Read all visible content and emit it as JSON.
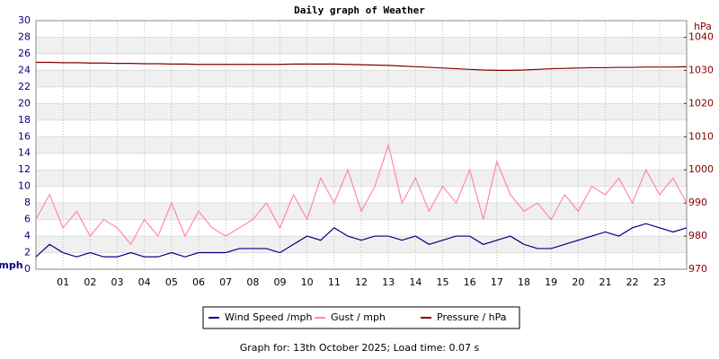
{
  "chart_data": {
    "type": "line",
    "title": "Daily graph of Weather",
    "y_label": "mph",
    "y2_label": "hPa",
    "footer": "Graph for: 13th October 2025; Load time: 0.07 s",
    "x": [
      0,
      0.5,
      1,
      1.5,
      2,
      2.5,
      3,
      3.5,
      4,
      4.5,
      5,
      5.5,
      6,
      6.5,
      7,
      7.5,
      8,
      8.5,
      9,
      9.5,
      10,
      10.5,
      11,
      11.5,
      12,
      12.5,
      13,
      13.5,
      14,
      14.5,
      15,
      15.5,
      16,
      16.5,
      17,
      17.5,
      18,
      18.5,
      19,
      19.5,
      20,
      20.5,
      21,
      21.5,
      22,
      22.5,
      23,
      23.5,
      24
    ],
    "series": [
      {
        "name": "Wind Speed /mph",
        "color": "#000080",
        "values": [
          1.5,
          3,
          2,
          1.5,
          2,
          1.5,
          1.5,
          2,
          1.5,
          1.5,
          2,
          1.5,
          2,
          2,
          2,
          2.5,
          2.5,
          2.5,
          2,
          3,
          4,
          3.5,
          5,
          4,
          3.5,
          4,
          4,
          3.5,
          4,
          3,
          3.5,
          4,
          4,
          3,
          3.5,
          4,
          3,
          2.5,
          2.5,
          3,
          3.5,
          4,
          4.5,
          4,
          5,
          5.5,
          5,
          4.5,
          5
        ]
      },
      {
        "name": "Gust / mph",
        "color": "#ff88aa",
        "values": [
          6,
          9,
          5,
          7,
          4,
          6,
          5,
          3,
          6,
          4,
          8,
          4,
          7,
          5,
          4,
          5,
          6,
          8,
          5,
          9,
          6,
          11,
          8,
          12,
          7,
          10,
          15,
          8,
          11,
          7,
          10,
          8,
          12,
          6,
          13,
          9,
          7,
          8,
          6,
          9,
          7,
          10,
          9,
          11,
          8,
          12,
          9,
          11,
          8
        ]
      },
      {
        "name": "Pressure / hPa",
        "color": "#800000",
        "axis": "y2",
        "values": [
          1032.4,
          1032.4,
          1032.3,
          1032.3,
          1032.2,
          1032.2,
          1032.1,
          1032.1,
          1032.0,
          1032.0,
          1031.9,
          1031.9,
          1031.8,
          1031.8,
          1031.8,
          1031.8,
          1031.8,
          1031.8,
          1031.8,
          1031.9,
          1031.9,
          1031.9,
          1031.9,
          1031.8,
          1031.7,
          1031.6,
          1031.5,
          1031.3,
          1031.1,
          1030.9,
          1030.7,
          1030.5,
          1030.3,
          1030.1,
          1030.0,
          1030.0,
          1030.1,
          1030.3,
          1030.5,
          1030.6,
          1030.7,
          1030.8,
          1030.8,
          1030.9,
          1030.9,
          1031.0,
          1031.0,
          1031.0,
          1031.1
        ]
      }
    ],
    "xlim": [
      0,
      24
    ],
    "xticks": [
      {
        "value": 1,
        "label": "01"
      },
      {
        "value": 2,
        "label": "02"
      },
      {
        "value": 3,
        "label": "03"
      },
      {
        "value": 4,
        "label": "04"
      },
      {
        "value": 5,
        "label": "05"
      },
      {
        "value": 6,
        "label": "06"
      },
      {
        "value": 7,
        "label": "07"
      },
      {
        "value": 8,
        "label": "08"
      },
      {
        "value": 9,
        "label": "09"
      },
      {
        "value": 10,
        "label": "10"
      },
      {
        "value": 11,
        "label": "11"
      },
      {
        "value": 12,
        "label": "12"
      },
      {
        "value": 13,
        "label": "13"
      },
      {
        "value": 14,
        "label": "14"
      },
      {
        "value": 15,
        "label": "15"
      },
      {
        "value": 16,
        "label": "16"
      },
      {
        "value": 17,
        "label": "17"
      },
      {
        "value": 18,
        "label": "18"
      },
      {
        "value": 19,
        "label": "19"
      },
      {
        "value": 20,
        "label": "20"
      },
      {
        "value": 21,
        "label": "21"
      },
      {
        "value": 22,
        "label": "22"
      },
      {
        "value": 23,
        "label": "23"
      }
    ],
    "ylim": [
      0,
      30
    ],
    "yticks": [
      0,
      2,
      4,
      6,
      8,
      10,
      12,
      14,
      16,
      18,
      20,
      22,
      24,
      26,
      28,
      30
    ],
    "y2lim": [
      970,
      1045
    ],
    "y2ticks": [
      970,
      980,
      990,
      1000,
      1010,
      1020,
      1030,
      1040
    ],
    "grid": true
  }
}
